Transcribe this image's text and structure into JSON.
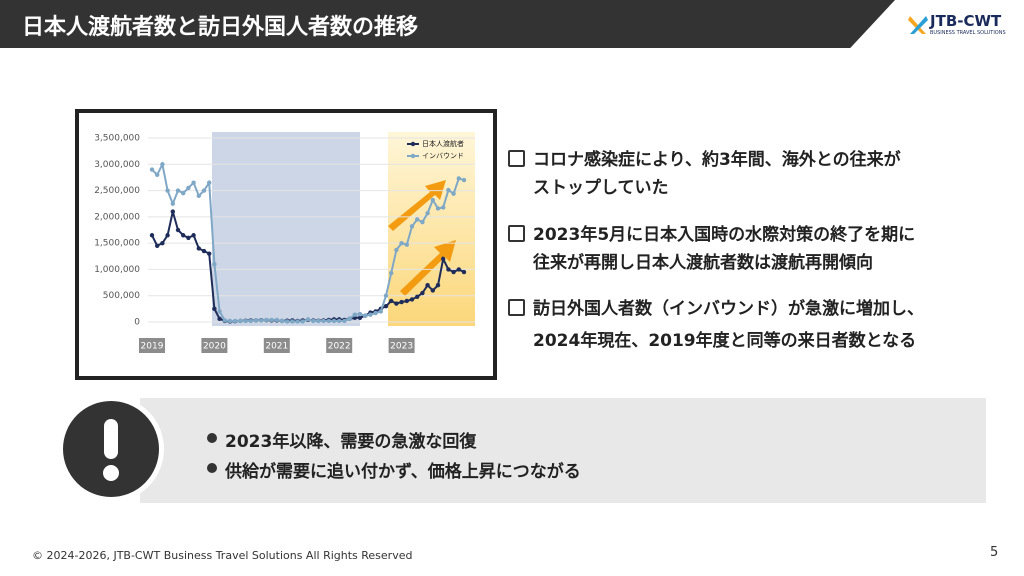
{
  "header": {
    "title": "日本人渡航者数と訪日外国人者数の推移",
    "logo": "JTB-CWT",
    "logo_sub": "BUSINESS TRAVEL SOLUTIONS"
  },
  "chart_data": {
    "type": "line",
    "categories": [
      "2019",
      null,
      null,
      null,
      null,
      null,
      null,
      null,
      null,
      null,
      null,
      null,
      "2020",
      null,
      null,
      null,
      null,
      null,
      null,
      null,
      null,
      null,
      null,
      null,
      "2021",
      null,
      null,
      null,
      null,
      null,
      null,
      null,
      null,
      null,
      null,
      null,
      "2022",
      null,
      null,
      null,
      null,
      null,
      null,
      null,
      null,
      null,
      null,
      null,
      "2023",
      null,
      null,
      null,
      null,
      null,
      null,
      null,
      null,
      null,
      null,
      null,
      null
    ],
    "series": [
      {
        "name": "日本人渡航者",
        "color": "#1f2d5a",
        "values": [
          1650000,
          1450000,
          1500000,
          1650000,
          2100000,
          1750000,
          1650000,
          1600000,
          1650000,
          1400000,
          1350000,
          1300000,
          250000,
          60000,
          20000,
          10000,
          15000,
          20000,
          25000,
          30000,
          30000,
          35000,
          35000,
          30000,
          30000,
          20000,
          25000,
          30000,
          20000,
          30000,
          40000,
          30000,
          25000,
          30000,
          40000,
          50000,
          50000,
          40000,
          60000,
          80000,
          80000,
          120000,
          180000,
          200000,
          250000,
          300000,
          400000,
          350000,
          380000,
          400000,
          430000,
          480000,
          550000,
          700000,
          600000,
          700000,
          1200000,
          1000000,
          950000,
          1000000,
          950000
        ]
      },
      {
        "name": "インバウンド",
        "color": "#7fa7c6",
        "values": [
          2900000,
          2800000,
          3000000,
          2500000,
          2250000,
          2500000,
          2450000,
          2550000,
          2650000,
          2400000,
          2500000,
          2650000,
          1100000,
          200000,
          30000,
          20000,
          20000,
          20000,
          20000,
          20000,
          30000,
          30000,
          40000,
          40000,
          40000,
          20000,
          10000,
          10000,
          10000,
          10000,
          50000,
          20000,
          20000,
          20000,
          20000,
          20000,
          20000,
          20000,
          60000,
          140000,
          150000,
          120000,
          140000,
          170000,
          200000,
          500000,
          930000,
          1370000,
          1500000,
          1470000,
          1820000,
          1950000,
          1900000,
          2070000,
          2320000,
          2160000,
          2180000,
          2510000,
          2440000,
          2730000,
          2700000
        ]
      }
    ],
    "ylim": [
      0,
      3500000
    ],
    "yticks": [
      0,
      {
        "value": 500000,
        "label": "500,000"
      },
      {
        "value": 1000000,
        "label": "1,000,000"
      },
      {
        "value": 1500000,
        "label": "1,500,000"
      },
      {
        "value": 2000000,
        "label": "2,000,000"
      },
      {
        "value": 2500000,
        "label": "2,500,000"
      },
      {
        "value": 3000000,
        "label": "3,000,000"
      },
      {
        "value": 3500000,
        "label": "3,500,000"
      }
    ],
    "legend": "top-right"
  },
  "points": [
    [
      "コロナ感染症により、約3年間、海外との往来が",
      "ストップしていた"
    ],
    [
      "2023年5月に日本入国時の水際対策の終了を期に",
      "往来が再開し日本人渡航者数は渡航再開傾向"
    ],
    [
      "訪日外国人者数（インバウンド）が急激に増加し、",
      "2024年現在、2019年度と同等の来日者数となる"
    ]
  ],
  "callout": {
    "items": [
      "2023年以降、需要の急激な回復",
      "供給が需要に追い付かず、価格上昇につながる"
    ]
  },
  "footer": {
    "copyright": "© 2024-2026, JTB-CWT Business Travel Solutions All Rights Reserved",
    "page": 5
  }
}
